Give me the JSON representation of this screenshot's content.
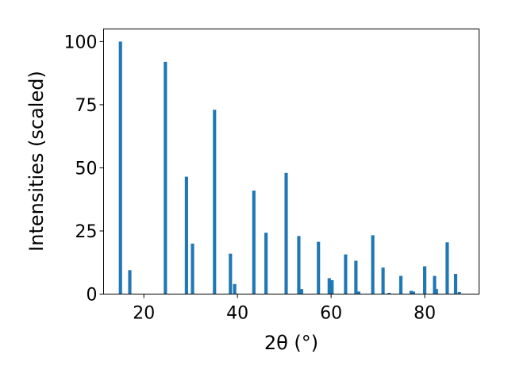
{
  "chart_data": {
    "type": "bar",
    "xlabel": "2θ (°)",
    "ylabel": "Intensities (scaled)",
    "xlim": [
      11.4,
      91.6
    ],
    "ylim": [
      0,
      105
    ],
    "xticks": [
      20,
      40,
      60,
      80
    ],
    "yticks": [
      0,
      25,
      50,
      75,
      100
    ],
    "bar_color": "#1f77b4",
    "bar_width": 0.7,
    "x": [
      15.0,
      17.0,
      24.6,
      29.1,
      30.4,
      35.1,
      38.5,
      39.4,
      43.5,
      46.1,
      50.4,
      53.1,
      53.7,
      57.3,
      59.6,
      60.2,
      63.1,
      65.3,
      65.9,
      68.9,
      71.1,
      72.4,
      74.9,
      77.1,
      77.6,
      80.0,
      82.1,
      82.5,
      84.8,
      86.6,
      87.4
    ],
    "values": [
      100,
      9.5,
      92,
      46.5,
      20,
      73,
      16,
      4,
      41,
      24.3,
      48,
      23,
      2,
      20.7,
      6.3,
      5.5,
      15.7,
      13.2,
      1,
      23.3,
      10.5,
      0.5,
      7.2,
      1.3,
      1,
      11,
      7.2,
      2,
      20.5,
      8,
      0.8
    ]
  }
}
